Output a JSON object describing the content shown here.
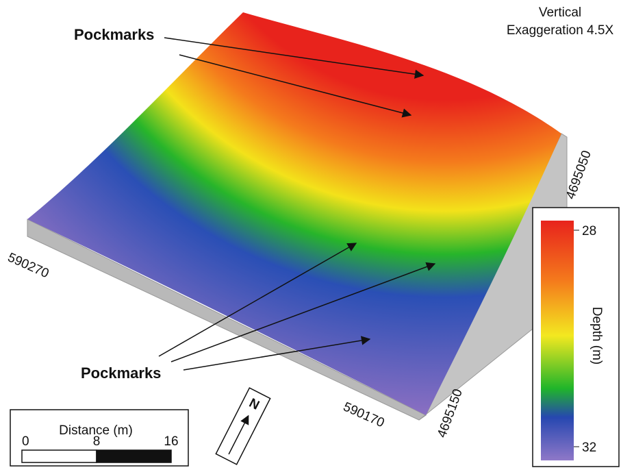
{
  "annotation": {
    "line1": "Vertical",
    "line2": "Exaggeration 4.5X"
  },
  "labels": {
    "pockmarks_top": "Pockmarks",
    "pockmarks_bottom": "Pockmarks"
  },
  "coordinates": {
    "x_left": "590270",
    "x_bottom": "590170",
    "y_right": "4695050",
    "y_bottom": "4695150"
  },
  "colorbar": {
    "title": "Depth (m)",
    "ticks": [
      28,
      32
    ]
  },
  "scale_bar": {
    "title": "Distance (m)",
    "ticks": [
      0,
      8,
      16
    ]
  },
  "north": "N"
}
